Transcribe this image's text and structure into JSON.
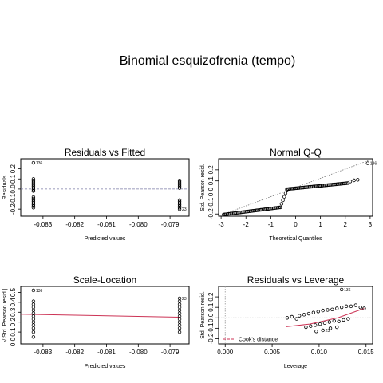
{
  "title": "Binomial esquizofrenia (tempo)",
  "chart_data": [
    {
      "type": "scatter",
      "title": "Residuals vs Fitted",
      "xlabel": "Predicted values",
      "ylabel": "Residuals",
      "xlim": [
        -0.0837,
        -0.0784
      ],
      "ylim": [
        -0.27,
        0.3
      ],
      "xticks": [
        -0.083,
        -0.082,
        -0.081,
        -0.08,
        -0.079
      ],
      "xtick_labels": [
        "-0.083",
        "-0.082",
        "-0.081",
        "-0.080",
        "-0.079"
      ],
      "yticks": [
        -0.2,
        -0.1,
        0.0,
        0.1,
        0.2
      ],
      "ytick_labels": [
        "-0.2",
        "-0.1",
        "0.0",
        "0.1",
        "0.2"
      ],
      "reference_line": {
        "y": 0,
        "color": "#7a7aa6",
        "style": "dashed"
      },
      "groups": [
        {
          "x": -0.0833,
          "y": [
            0.26,
            0.1,
            0.085,
            0.07,
            0.055,
            0.04,
            0.025,
            0.01,
            -0.005,
            -0.02,
            -0.08,
            -0.095,
            -0.11,
            -0.125,
            -0.14,
            -0.155,
            -0.17,
            -0.185
          ]
        },
        {
          "x": -0.0787,
          "y": [
            0.085,
            0.07,
            0.055,
            0.04,
            0.025,
            0.01,
            -0.11,
            -0.125,
            -0.14,
            -0.155,
            -0.17,
            -0.185,
            -0.2
          ]
        }
      ],
      "point_labels": [
        {
          "x": -0.0833,
          "y": 0.26,
          "text": "136"
        },
        {
          "x": -0.0787,
          "y": -0.2,
          "text": "23"
        }
      ]
    },
    {
      "type": "scatter",
      "title": "Normal Q-Q",
      "xlabel": "Theoretical Quantiles",
      "ylabel": "Std. Pearson resid.",
      "xlim": [
        -3.1,
        3.1
      ],
      "ylim": [
        -0.22,
        0.3
      ],
      "xticks": [
        -3,
        -2,
        -1,
        0,
        1,
        2,
        3
      ],
      "xtick_labels": [
        "-3",
        "-2",
        "-1",
        "0",
        "1",
        "2",
        "3"
      ],
      "yticks": [
        -0.2,
        -0.1,
        0.0,
        0.1,
        0.2
      ],
      "ytick_labels": [
        "-0.2",
        "-0.1",
        "0.0",
        "0.1",
        "0.2"
      ],
      "reference_line": {
        "type": "qqline",
        "from": [
          -3,
          -0.21
        ],
        "to": [
          3,
          0.29
        ],
        "color": "#777777",
        "style": "dotted"
      },
      "qq_segments": [
        {
          "x_from": -2.9,
          "x_to": -0.62,
          "y_from": -0.205,
          "y_to": -0.14
        },
        {
          "x_from": -0.62,
          "x_to": -0.35,
          "y_from": -0.14,
          "y_to": 0.02
        },
        {
          "x_from": -0.35,
          "x_to": 2.1,
          "y_from": 0.025,
          "y_to": 0.08
        }
      ],
      "extra_points": [
        [
          2.2,
          0.095
        ],
        [
          2.35,
          0.105
        ],
        [
          2.5,
          0.11
        ],
        [
          2.9,
          0.26
        ]
      ],
      "point_labels": [
        {
          "x": 2.9,
          "y": 0.26,
          "text": "136"
        }
      ]
    },
    {
      "type": "scatter",
      "title": "Scale-Location",
      "xlabel": "Predicted values",
      "ylabel": "√|Std. Pearson resid.|",
      "xlim": [
        -0.0837,
        -0.0784
      ],
      "ylim": [
        -0.02,
        0.56
      ],
      "xticks": [
        -0.083,
        -0.082,
        -0.081,
        -0.08,
        -0.079
      ],
      "xtick_labels": [
        "-0.083",
        "-0.082",
        "-0.081",
        "-0.080",
        "-0.079"
      ],
      "yticks": [
        0.0,
        0.1,
        0.2,
        0.3,
        0.4,
        0.5
      ],
      "ytick_labels": [
        "0.0",
        "0.1",
        "0.2",
        "0.3",
        "0.4",
        "0.5"
      ],
      "smoother": {
        "from": [
          -0.0837,
          0.28
        ],
        "to": [
          -0.0787,
          0.25
        ],
        "color": "#cc3355"
      },
      "groups": [
        {
          "x": -0.0833,
          "y": [
            0.52,
            0.41,
            0.38,
            0.35,
            0.32,
            0.29,
            0.26,
            0.23,
            0.2,
            0.17,
            0.14,
            0.1,
            0.05
          ]
        },
        {
          "x": -0.0787,
          "y": [
            0.44,
            0.41,
            0.38,
            0.35,
            0.32,
            0.29,
            0.26,
            0.23,
            0.2,
            0.17,
            0.14,
            0.1
          ]
        }
      ],
      "point_labels": [
        {
          "x": -0.0833,
          "y": 0.52,
          "text": "136"
        },
        {
          "x": -0.0787,
          "y": 0.44,
          "text": "23"
        }
      ]
    },
    {
      "type": "scatter",
      "title": "Residuals vs Leverage",
      "xlabel": "Leverage",
      "ylabel": "Std. Pearson resid.",
      "xlim": [
        -0.0007,
        0.0157
      ],
      "ylim": [
        -0.25,
        0.3
      ],
      "xticks": [
        0.0,
        0.005,
        0.01,
        0.015
      ],
      "xtick_labels": [
        "0.000",
        "0.005",
        "0.010",
        "0.015"
      ],
      "yticks": [
        -0.2,
        -0.1,
        0.0,
        0.1,
        0.2
      ],
      "ytick_labels": [
        "-0.2",
        "-0.1",
        "0.0",
        "0.1",
        "0.2"
      ],
      "reference_lines": [
        {
          "y": 0,
          "color": "#999999",
          "style": "dotted"
        },
        {
          "x": 0,
          "color": "#999999",
          "style": "dotted"
        }
      ],
      "smoother": {
        "points": [
          [
            0.0065,
            -0.085
          ],
          [
            0.009,
            -0.06
          ],
          [
            0.012,
            0.0
          ],
          [
            0.0148,
            0.09
          ]
        ],
        "color": "#cc3355"
      },
      "points": [
        [
          0.0066,
          0.0
        ],
        [
          0.0071,
          0.01
        ],
        [
          0.0076,
          -0.01
        ],
        [
          0.0079,
          0.02
        ],
        [
          0.0084,
          0.03
        ],
        [
          0.0089,
          0.04
        ],
        [
          0.0094,
          0.05
        ],
        [
          0.0099,
          0.06
        ],
        [
          0.0104,
          0.07
        ],
        [
          0.0109,
          0.075
        ],
        [
          0.0114,
          0.08
        ],
        [
          0.0119,
          0.09
        ],
        [
          0.0124,
          0.1
        ],
        [
          0.0129,
          0.11
        ],
        [
          0.0134,
          0.11
        ],
        [
          0.0139,
          0.12
        ],
        [
          0.0144,
          0.1
        ],
        [
          0.0148,
          0.09
        ],
        [
          0.0086,
          -0.09
        ],
        [
          0.0091,
          -0.08
        ],
        [
          0.0096,
          -0.07
        ],
        [
          0.0101,
          -0.06
        ],
        [
          0.0106,
          -0.05
        ],
        [
          0.0111,
          -0.04
        ],
        [
          0.0116,
          -0.03
        ],
        [
          0.0121,
          -0.035
        ],
        [
          0.0126,
          -0.02
        ],
        [
          0.0131,
          -0.01
        ],
        [
          0.0097,
          -0.13
        ],
        [
          0.0104,
          -0.12
        ],
        [
          0.0112,
          -0.1
        ],
        [
          0.0119,
          -0.09
        ],
        [
          0.0124,
          0.27
        ]
      ],
      "point_labels": [
        {
          "x": 0.0124,
          "y": 0.27,
          "text": "136"
        },
        {
          "x": 0.0104,
          "y": -0.12,
          "text": "23"
        }
      ],
      "legend": {
        "label": "Cook's distance",
        "color": "#cc3355",
        "style": "dashed",
        "position": "bottom-left"
      }
    }
  ]
}
